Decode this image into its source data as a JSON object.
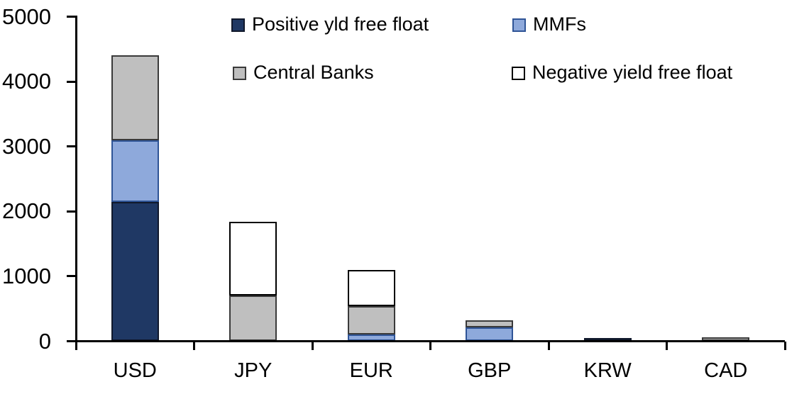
{
  "chart_data": {
    "type": "bar",
    "stacked": true,
    "title": "",
    "xlabel": "",
    "ylabel": "",
    "categories": [
      "USD",
      "JPY",
      "EUR",
      "GBP",
      "KRW",
      "CAD"
    ],
    "series": [
      {
        "name": "Positive yld free float",
        "fill": "#1f3864",
        "border": "#10182b",
        "values": [
          2150,
          0,
          0,
          0,
          50,
          0
        ]
      },
      {
        "name": "MMFs",
        "fill": "#8ea9db",
        "border": "#2f5496",
        "values": [
          950,
          0,
          100,
          215,
          0,
          0
        ]
      },
      {
        "name": "Central Banks",
        "fill": "#bfbfbf",
        "border": "#3a3a3a",
        "values": [
          1300,
          700,
          440,
          110,
          0,
          60
        ]
      },
      {
        "name": "Negative yield free float",
        "fill": "#ffffff",
        "border": "#000000",
        "values": [
          0,
          1140,
          560,
          0,
          0,
          0
        ]
      }
    ],
    "totals": [
      4400,
      1840,
      1100,
      325,
      50,
      60
    ],
    "ylim": [
      0,
      5000
    ],
    "ytick_labels": [
      "0",
      "1000",
      "2000",
      "3000",
      "4000",
      "5000"
    ],
    "grid": false,
    "legend_position": "top",
    "axis_color": "#000000",
    "background_color": "#ffffff"
  }
}
